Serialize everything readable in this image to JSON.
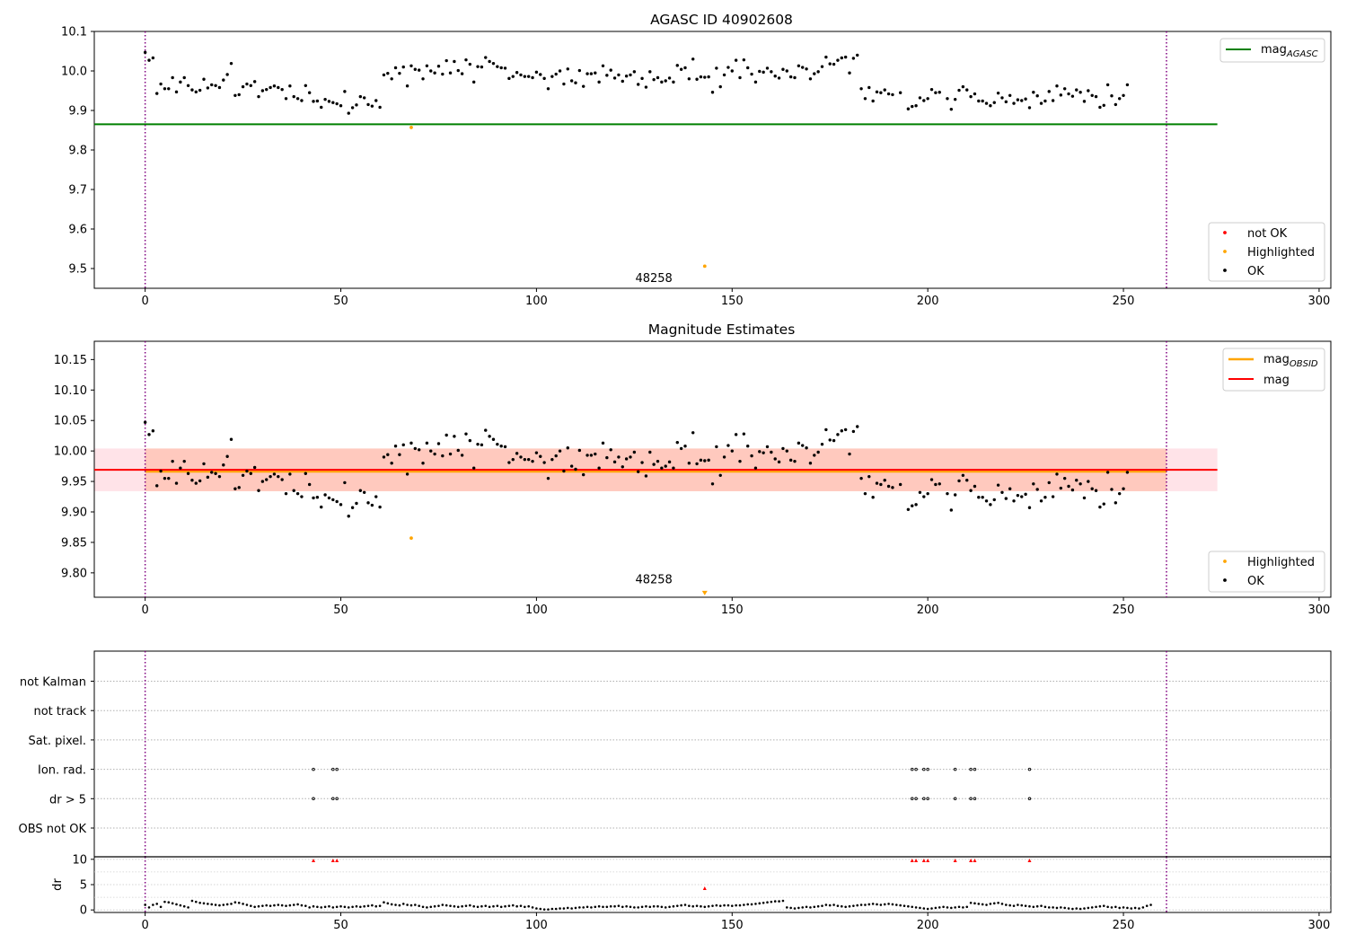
{
  "colors": {
    "ok": "#000000",
    "highlighted": "#ffa500",
    "not_ok": "#ff0000",
    "agasc_line": "#008000",
    "mag_line": "#ff0000",
    "obsid_line": "#ffa500",
    "bound_line": "#800080",
    "band_outer": "#ffc0cb",
    "band_inner": "#ffa07a"
  },
  "chart_data": [
    {
      "type": "scatter",
      "title": "AGASC ID 40902608",
      "xlabel": "",
      "ylabel": "",
      "xlim": [
        -13,
        303
      ],
      "ylim": [
        9.45,
        10.1
      ],
      "xticks": [
        0,
        50,
        100,
        150,
        200,
        250,
        300
      ],
      "yticks": [
        9.5,
        9.6,
        9.7,
        9.8,
        9.9,
        10.0,
        10.1
      ],
      "ytick_labels": [
        "9.5",
        "9.6",
        "9.7",
        "9.8",
        "9.9",
        "10.0",
        "10.1"
      ],
      "annotation": {
        "text": "48258",
        "x": 130,
        "y": 9.475
      },
      "mag_agasc": 9.865,
      "mag_agasc_x": [
        -13,
        274
      ],
      "vlines": [
        0,
        261
      ],
      "legend_top": {
        "placement": "upper right",
        "entries": [
          "mag_{AGASC}"
        ]
      },
      "legend_bottom": {
        "placement": "lower right",
        "entries": [
          "not OK",
          "Highlighted",
          "OK"
        ]
      },
      "highlighted": [
        [
          68,
          9.857
        ],
        [
          143,
          9.506
        ]
      ],
      "ok_values": [
        10.047,
        10.027,
        10.033,
        9.943,
        9.967,
        9.955,
        9.955,
        9.983,
        9.947,
        9.972,
        9.983,
        9.963,
        9.952,
        9.947,
        9.951,
        9.979,
        9.957,
        9.965,
        9.963,
        9.958,
        9.977,
        9.991,
        10.019,
        9.938,
        9.94,
        9.96,
        9.967,
        9.963,
        9.973,
        9.935,
        9.95,
        9.953,
        9.958,
        9.962,
        9.958,
        9.953,
        9.93,
        9.962,
        9.935,
        9.93,
        9.925,
        9.963,
        9.945,
        9.923,
        9.924,
        9.908,
        9.928,
        9.923,
        9.92,
        9.917,
        9.912,
        9.948,
        9.893,
        9.907,
        9.914,
        9.935,
        9.932,
        9.915,
        9.911,
        9.925,
        9.908,
        9.99,
        9.994,
        9.98,
        10.008,
        9.994,
        10.01,
        9.962,
        10.013,
        10.004,
        10.002,
        9.98,
        10.013,
        10.0,
        9.995,
        10.012,
        9.992,
        10.026,
        9.995,
        10.024,
        10.001,
        9.993,
        10.028,
        10.017,
        9.972,
        10.011,
        10.01,
        10.034,
        10.024,
        10.019,
        10.011,
        10.008,
        10.007,
        9.981,
        9.986,
        9.996,
        9.99,
        9.986,
        9.986,
        9.983,
        9.997,
        9.991,
        9.981,
        9.955,
        9.986,
        9.992,
        10.0,
        9.967,
        10.005,
        9.975,
        9.97,
        10.001,
        9.961,
        9.993,
        9.993,
        9.995,
        9.972,
        10.013,
        9.989,
        10.002,
        9.982,
        9.99,
        9.974,
        9.987,
        9.99,
        9.998,
        9.966,
        9.981,
        9.959,
        9.998,
        9.978,
        9.983,
        9.972,
        9.975,
        9.982,
        9.972,
        10.014,
        10.004,
        10.008,
        9.98,
        10.03,
        9.979,
        9.985,
        9.984,
        9.985,
        9.946,
        10.007,
        9.96,
        9.99,
        10.009,
        10.0,
        10.027,
        9.983,
        10.028,
        10.008,
        9.992,
        9.972,
        9.999,
        9.997,
        10.007,
        9.998,
        9.987,
        9.982,
        10.004,
        10.0,
        9.985,
        9.983,
        10.013,
        10.009,
        10.005,
        9.98,
        9.993,
        9.998,
        10.011,
        10.035,
        10.018,
        10.017,
        10.027,
        10.033,
        10.035,
        9.995,
        10.032,
        10.04,
        9.955,
        9.93,
        9.958,
        9.924,
        9.947,
        9.945,
        9.952,
        9.942,
        9.94,
        null,
        9.945,
        null,
        9.904,
        9.91,
        9.912,
        9.932,
        9.925,
        9.93,
        9.953,
        9.945,
        9.946,
        null,
        9.93,
        9.903,
        9.928,
        9.951,
        9.96,
        9.952,
        9.935,
        9.942,
        9.924,
        9.924,
        9.918,
        9.912,
        9.92,
        9.944,
        9.932,
        9.922,
        9.938,
        9.918,
        9.927,
        9.925,
        9.929,
        9.907,
        9.946,
        9.937,
        9.918,
        9.924,
        9.948,
        9.925,
        9.962,
        9.939,
        9.955,
        9.942,
        9.936,
        9.952,
        9.946,
        9.923,
        9.95,
        9.938,
        9.935,
        9.908,
        9.913,
        9.965,
        9.937,
        9.915,
        9.93,
        9.938,
        9.965
      ]
    },
    {
      "type": "scatter",
      "title": "Magnitude Estimates",
      "xlabel": "",
      "ylabel": "",
      "xlim": [
        -13,
        303
      ],
      "ylim": [
        9.76,
        10.18
      ],
      "xticks": [
        0,
        50,
        100,
        150,
        200,
        250,
        300
      ],
      "yticks": [
        9.8,
        9.85,
        9.9,
        9.95,
        10.0,
        10.05,
        10.1,
        10.15
      ],
      "ytick_labels": [
        "9.80",
        "9.85",
        "9.90",
        "9.95",
        "10.00",
        "10.05",
        "10.10",
        "10.15"
      ],
      "annotation": {
        "text": "48258",
        "x": 130,
        "y": 9.78
      },
      "mag": 9.969,
      "mag_x": [
        -13,
        274
      ],
      "mag_obsid": 9.966,
      "mag_obsid_x": [
        0,
        261
      ],
      "band_outer": [
        9.934,
        10.004
      ],
      "band_outer_x": [
        -13,
        274
      ],
      "band_inner": [
        9.934,
        10.004
      ],
      "band_inner_x": [
        0,
        261
      ],
      "vlines": [
        0,
        261
      ],
      "legend_top": {
        "placement": "upper right",
        "entries": [
          "mag_{OBSID}",
          "mag"
        ]
      },
      "legend_bottom": {
        "placement": "lower right",
        "entries": [
          "Highlighted",
          "OK"
        ]
      },
      "highlighted": [
        [
          68,
          9.857
        ]
      ],
      "offscale_marker": [
        143,
        9.766
      ]
    },
    {
      "type": "scatter",
      "title": "",
      "xlabel": "",
      "ylabel": "",
      "xlim": [
        -13,
        303
      ],
      "xticks": [
        0,
        50,
        100,
        150,
        200,
        250,
        300
      ],
      "rows": [
        "not Kalman",
        "not track",
        "Sat. pixel.",
        "Ion. rad.",
        "dr > 5",
        "OBS not OK"
      ],
      "flagged_x": [
        43,
        48,
        49,
        196,
        197,
        199,
        200,
        207,
        211,
        212,
        226
      ],
      "flag_rows": [
        "Ion. rad.",
        "dr > 5"
      ],
      "vlines": [
        0,
        261
      ]
    },
    {
      "type": "scatter",
      "title": "",
      "xlabel": "",
      "ylabel": "dr",
      "xlim": [
        -13,
        303
      ],
      "ylim": [
        -0.5,
        10.5
      ],
      "xticks": [
        0,
        50,
        100,
        150,
        200,
        250,
        300
      ],
      "yticks": [
        0,
        5,
        10
      ],
      "ytick_labels": [
        "0",
        "5",
        "10"
      ],
      "dr_values": [
        1.0,
        0.5,
        1.0,
        1.2,
        0.6,
        1.6,
        1.5,
        1.3,
        1.1,
        0.9,
        0.7,
        0.5,
        1.8,
        1.6,
        1.4,
        1.3,
        1.2,
        1.1,
        1.0,
        0.9,
        1.0,
        1.1,
        1.2,
        1.5,
        1.4,
        1.2,
        1.0,
        0.8,
        0.6,
        0.7,
        0.8,
        0.9,
        0.8,
        0.9,
        1.0,
        0.9,
        0.8,
        0.9,
        1.0,
        1.1,
        0.9,
        0.8,
        0.5,
        0.7,
        0.6,
        0.5,
        0.6,
        0.7,
        0.5,
        0.6,
        0.7,
        0.6,
        0.5,
        0.6,
        0.7,
        0.6,
        0.7,
        0.8,
        0.9,
        0.7,
        0.8,
        1.5,
        1.3,
        1.1,
        1.0,
        0.9,
        1.2,
        1.0,
        0.9,
        1.0,
        0.8,
        0.6,
        0.5,
        0.6,
        0.7,
        0.8,
        1.0,
        0.9,
        0.8,
        0.7,
        0.6,
        0.7,
        0.8,
        0.9,
        0.7,
        0.6,
        0.7,
        0.8,
        0.6,
        0.7,
        0.8,
        0.6,
        0.7,
        0.8,
        0.9,
        0.7,
        0.8,
        0.6,
        0.7,
        0.5,
        0.3,
        0.2,
        0.1,
        0.1,
        0.2,
        0.2,
        0.3,
        0.3,
        0.4,
        0.3,
        0.4,
        0.5,
        0.5,
        0.6,
        0.5,
        0.6,
        0.7,
        0.6,
        0.6,
        0.7,
        0.7,
        0.8,
        0.6,
        0.7,
        0.6,
        0.5,
        0.5,
        0.6,
        0.7,
        0.6,
        0.7,
        0.7,
        0.6,
        0.5,
        0.6,
        0.7,
        0.8,
        0.9,
        1.0,
        0.8,
        0.7,
        0.8,
        0.7,
        0.6,
        0.7,
        0.8,
        0.9,
        0.8,
        0.9,
        0.9,
        0.8,
        0.9,
        0.9,
        1.0,
        1.1,
        1.1,
        1.2,
        1.3,
        1.4,
        1.5,
        1.6,
        1.7,
        1.7,
        1.8,
        0.5,
        0.4,
        0.3,
        0.4,
        0.5,
        0.6,
        0.5,
        0.6,
        0.7,
        0.8,
        1.0,
        0.9,
        1.0,
        0.8,
        0.7,
        0.6,
        0.7,
        0.8,
        0.9,
        1.0,
        1.0,
        1.1,
        1.2,
        1.1,
        1.0,
        1.1,
        1.2,
        1.1,
        1.0,
        0.9,
        0.8,
        0.7,
        0.6,
        0.5,
        0.4,
        0.3,
        0.2,
        0.3,
        0.4,
        0.5,
        0.6,
        0.5,
        0.4,
        0.5,
        0.6,
        0.5,
        0.6,
        1.4,
        1.3,
        1.2,
        1.1,
        1.0,
        1.2,
        1.3,
        1.4,
        1.2,
        1.0,
        0.9,
        0.8,
        1.0,
        0.9,
        0.8,
        0.7,
        0.6,
        0.7,
        0.8,
        0.6,
        0.5,
        0.5,
        0.4,
        0.5,
        0.4,
        0.3,
        0.2,
        0.3,
        0.2,
        0.3,
        0.4,
        0.5,
        0.6,
        0.7,
        0.8,
        0.6,
        0.5,
        0.6,
        0.4,
        0.5,
        0.4,
        0.3,
        0.4,
        0.3,
        0.5,
        0.8,
        1.0
      ],
      "dr_flagged": [
        [
          43,
          9.8
        ],
        [
          48,
          9.8
        ],
        [
          49,
          9.8
        ],
        [
          143,
          4.3
        ],
        [
          196,
          9.8
        ],
        [
          197,
          9.8
        ],
        [
          199,
          9.8
        ],
        [
          200,
          9.8
        ],
        [
          207,
          9.8
        ],
        [
          211,
          9.8
        ],
        [
          212,
          9.8
        ],
        [
          226,
          9.8
        ]
      ],
      "vlines": [
        0,
        261
      ]
    }
  ]
}
